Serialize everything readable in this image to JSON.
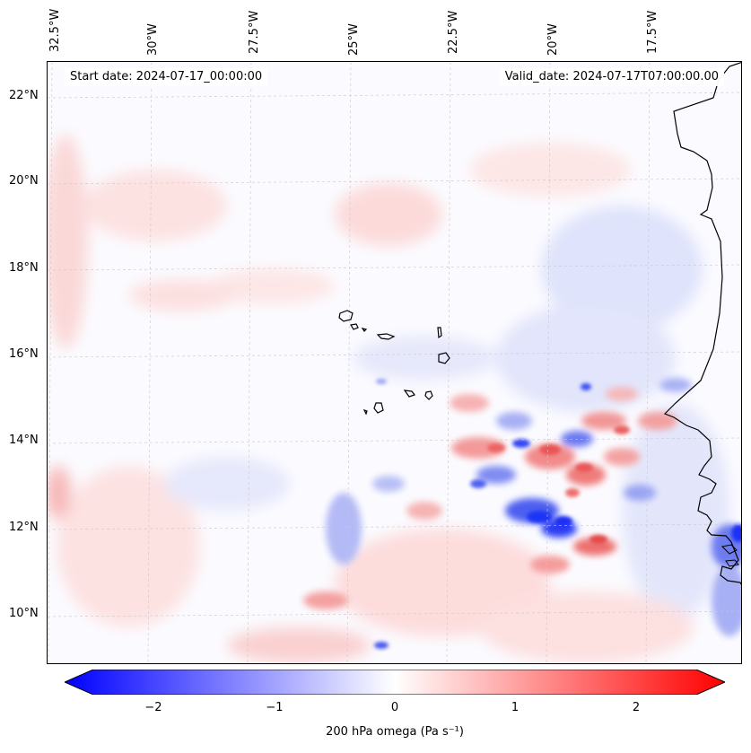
{
  "header": {
    "start_date": "Start date: 2024-07-17_00:00:00",
    "valid_date": "Valid_date: 2024-07-17T07:00:00.00"
  },
  "axes": {
    "lon_labels": [
      "32.5°W",
      "30°W",
      "27.5°W",
      "25°W",
      "22.5°W",
      "20°W",
      "17.5°W"
    ],
    "lat_labels": [
      "22°N",
      "20°N",
      "18°N",
      "16°N",
      "14°N",
      "12°N",
      "10°N"
    ]
  },
  "colorbar": {
    "ticks": [
      "−2",
      "−1",
      "0",
      "1",
      "2"
    ],
    "tick_values": [
      -2,
      -1,
      0,
      1,
      2
    ],
    "range": [
      -2.5,
      2.5
    ],
    "label": "200 hPa omega (Pa s⁻¹)",
    "colors": {
      "negative": "#0000ff",
      "zero": "#ffffff",
      "positive": "#ff0000"
    }
  },
  "map": {
    "field": "200 hPa omega",
    "colormap": "bwr",
    "coastline_color": "#000000",
    "gridline_color": "#c8c8c8"
  }
}
